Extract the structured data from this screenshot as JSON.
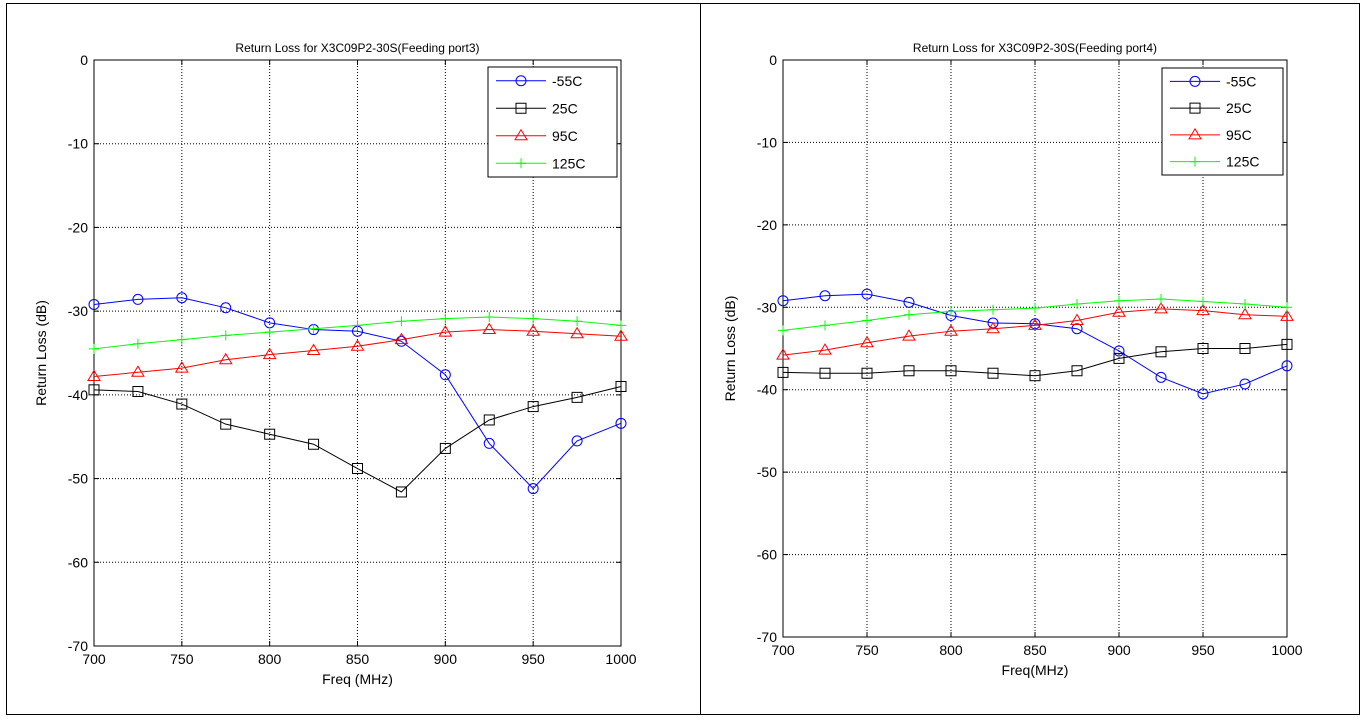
{
  "chart_data": [
    {
      "type": "line",
      "title": "Return Loss for X3C09P2-30S(Feeding port3)",
      "xlabel": "Freq (MHz)",
      "ylabel": "Return Loss (dB)",
      "xlim": [
        700,
        1000
      ],
      "ylim": [
        -70,
        0
      ],
      "xticks": [
        700,
        750,
        800,
        850,
        900,
        950,
        1000
      ],
      "yticks": [
        0,
        -10,
        -20,
        -30,
        -40,
        -50,
        -60,
        -70
      ],
      "grid": true,
      "legend": "top-right",
      "x": [
        700,
        725,
        750,
        775,
        800,
        825,
        850,
        875,
        900,
        925,
        950,
        975,
        1000
      ],
      "series": [
        {
          "name": "-55C",
          "color": "#0000ff",
          "marker": "circle",
          "values": [
            -29.2,
            -28.6,
            -28.4,
            -29.6,
            -31.4,
            -32.2,
            -32.4,
            -33.6,
            -37.6,
            -45.8,
            -51.2,
            -45.5,
            -43.4
          ]
        },
        {
          "name": "25C",
          "color": "#000000",
          "marker": "square",
          "values": [
            -39.4,
            -39.6,
            -41.1,
            -43.5,
            -44.7,
            -45.9,
            -48.8,
            -51.6,
            -46.4,
            -43.0,
            -41.4,
            -40.3,
            -39.0
          ]
        },
        {
          "name": "95C",
          "color": "#ff0000",
          "marker": "triangle",
          "values": [
            -37.8,
            -37.3,
            -36.8,
            -35.8,
            -35.2,
            -34.7,
            -34.2,
            -33.4,
            -32.5,
            -32.2,
            -32.4,
            -32.7,
            -33.0
          ]
        },
        {
          "name": "125C",
          "color": "#00ff00",
          "marker": "plus",
          "values": [
            -34.5,
            -33.9,
            -33.4,
            -32.9,
            -32.5,
            -32.1,
            -31.7,
            -31.2,
            -30.9,
            -30.7,
            -30.9,
            -31.2,
            -31.7
          ]
        }
      ]
    },
    {
      "type": "line",
      "title": "Return Loss for X3C09P2-30S(Feeding port4)",
      "xlabel": "Freq(MHz)",
      "ylabel": "Return Loss (dB)",
      "xlim": [
        700,
        1000
      ],
      "ylim": [
        -70,
        0
      ],
      "xticks": [
        700,
        750,
        800,
        850,
        900,
        950,
        1000
      ],
      "yticks": [
        0,
        -10,
        -20,
        -30,
        -40,
        -50,
        -60,
        -70
      ],
      "grid": true,
      "legend": "top-right",
      "x": [
        700,
        725,
        750,
        775,
        800,
        825,
        850,
        875,
        900,
        925,
        950,
        975,
        1000
      ],
      "series": [
        {
          "name": "-55C",
          "color": "#0000ff",
          "marker": "circle",
          "values": [
            -29.2,
            -28.6,
            -28.4,
            -29.4,
            -31.0,
            -31.9,
            -32.0,
            -32.6,
            -35.3,
            -38.5,
            -40.5,
            -39.3,
            -37.1
          ]
        },
        {
          "name": "25C",
          "color": "#000000",
          "marker": "square",
          "values": [
            -37.9,
            -38.0,
            -38.0,
            -37.7,
            -37.7,
            -38.0,
            -38.3,
            -37.7,
            -36.2,
            -35.4,
            -35.0,
            -35.0,
            -34.5
          ]
        },
        {
          "name": "95C",
          "color": "#ff0000",
          "marker": "triangle",
          "values": [
            -35.8,
            -35.2,
            -34.3,
            -33.5,
            -32.9,
            -32.6,
            -32.2,
            -31.6,
            -30.6,
            -30.2,
            -30.4,
            -30.9,
            -31.1
          ]
        },
        {
          "name": "125C",
          "color": "#00ff00",
          "marker": "plus",
          "values": [
            -32.8,
            -32.2,
            -31.6,
            -30.9,
            -30.5,
            -30.3,
            -30.1,
            -29.6,
            -29.2,
            -29.0,
            -29.3,
            -29.6,
            -30.0
          ]
        }
      ]
    }
  ]
}
